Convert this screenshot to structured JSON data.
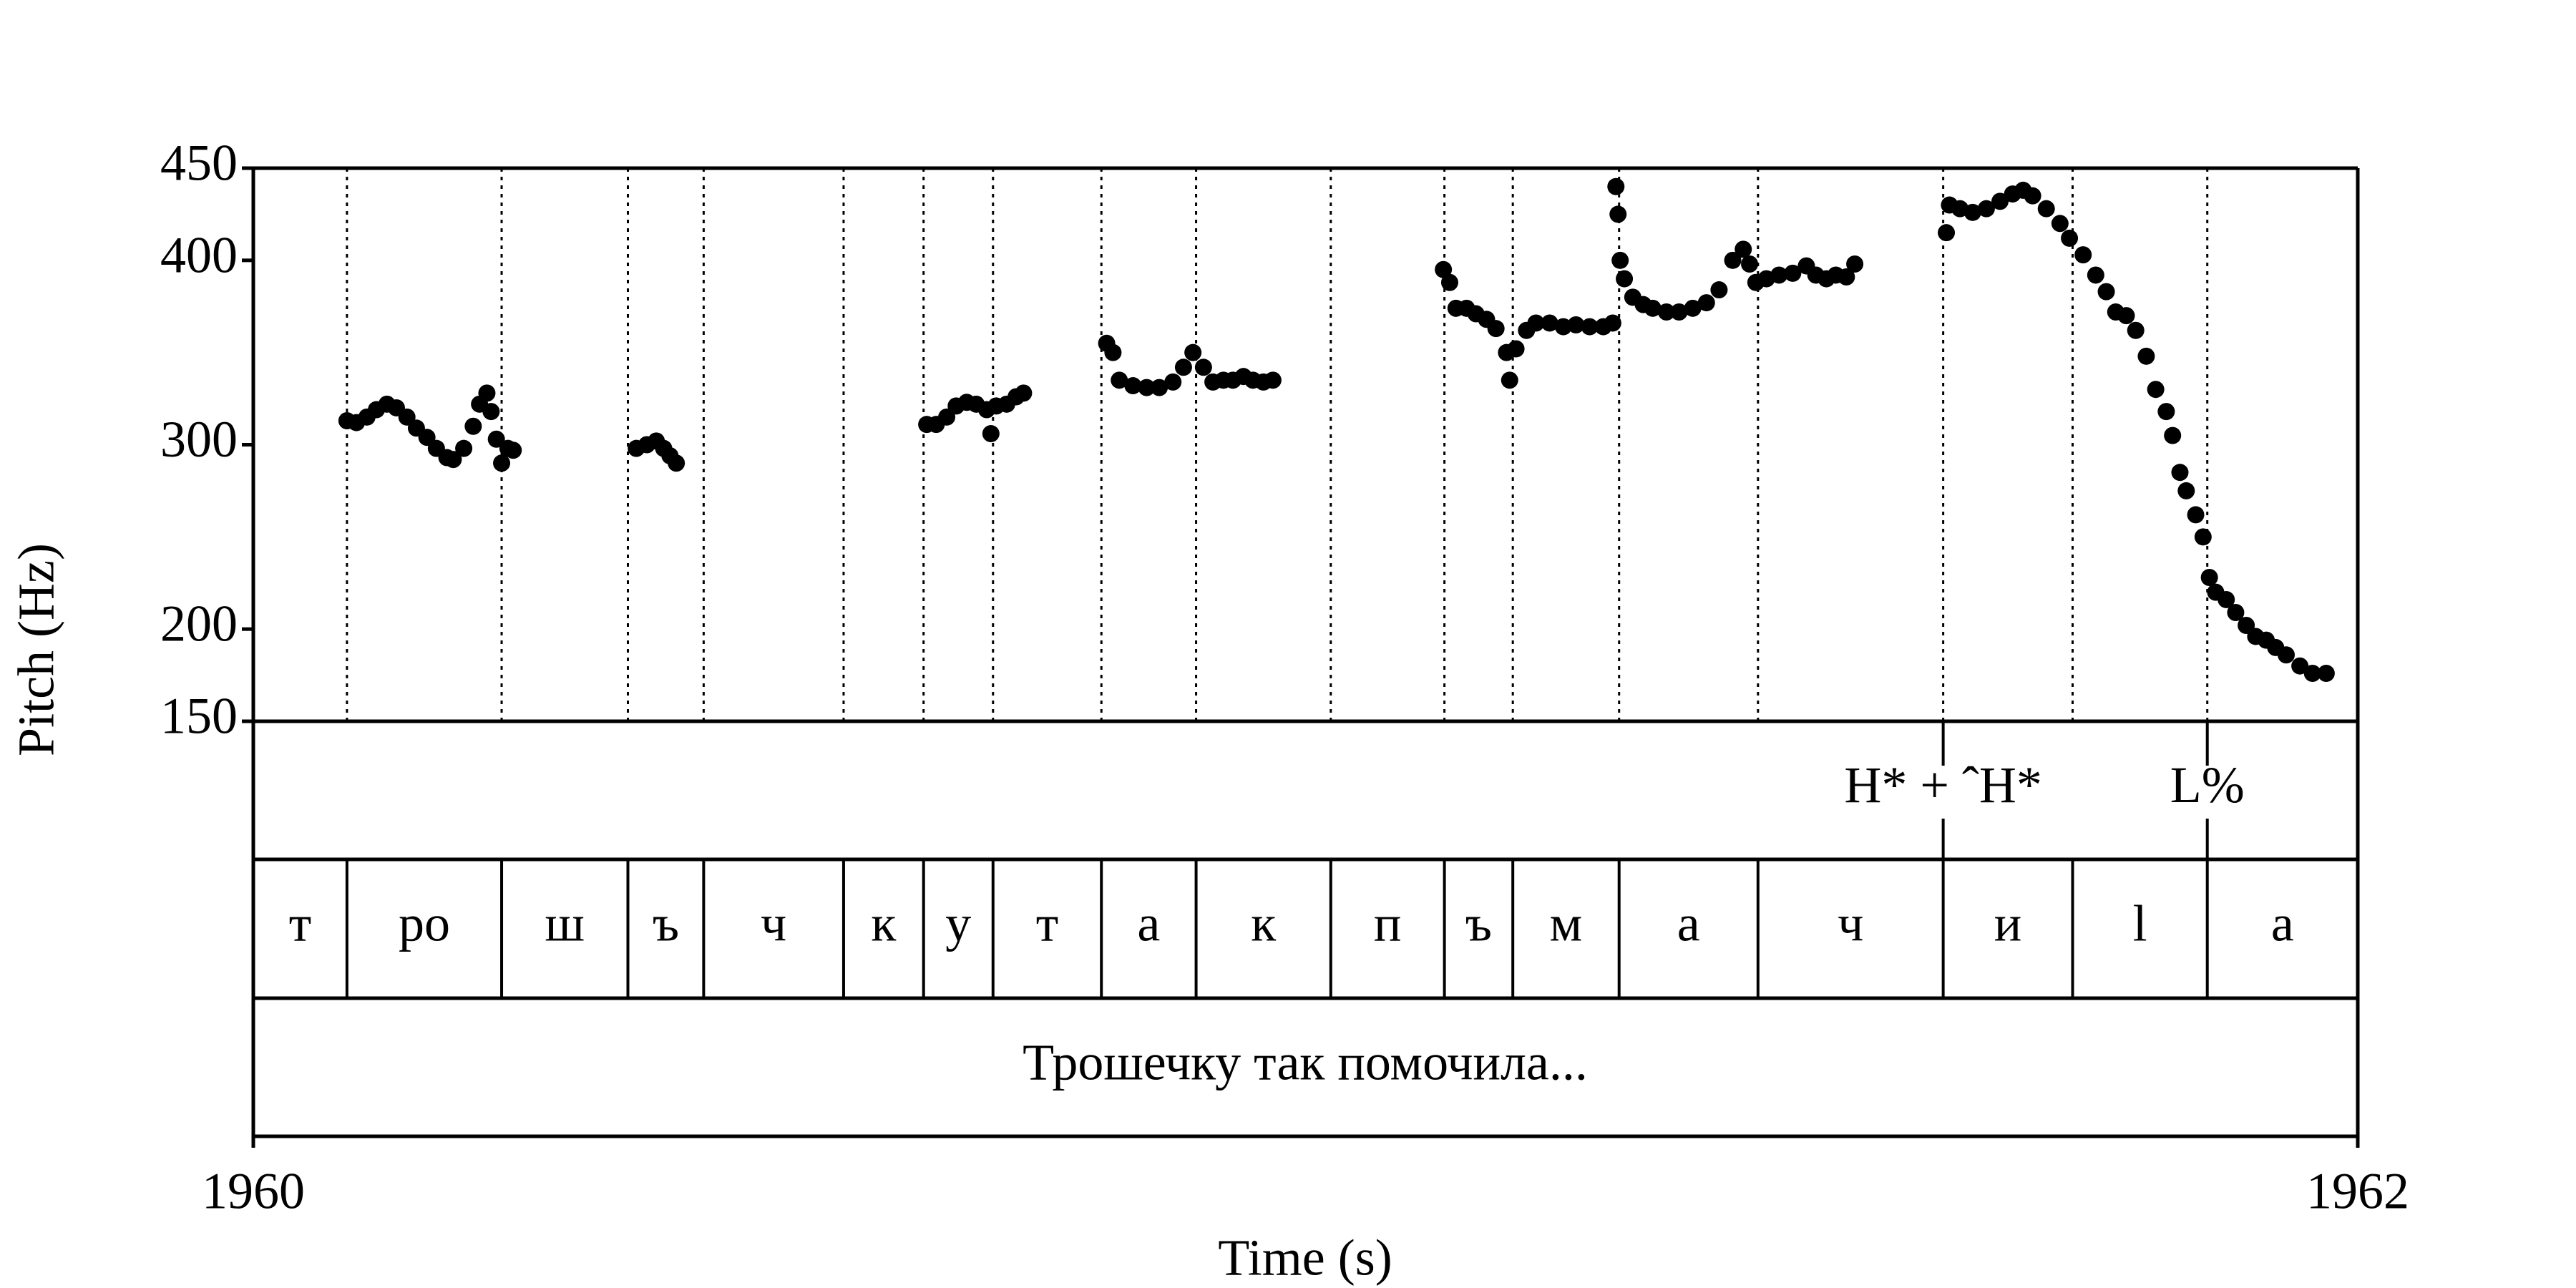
{
  "chart_data": {
    "type": "scatter",
    "x_label": "Time (s)",
    "y_label": "Pitch (Hz)",
    "xlim": [
      1960,
      1962
    ],
    "xticks": [
      1960,
      1962
    ],
    "ylim": [
      150,
      450
    ],
    "yticks": [
      150,
      200,
      300,
      400,
      450
    ],
    "color": "#000000",
    "x": [
      1960.089,
      1960.098,
      1960.108,
      1960.117,
      1960.127,
      1960.136,
      1960.146,
      1960.155,
      1960.165,
      1960.174,
      1960.184,
      1960.19,
      1960.2,
      1960.209,
      1960.215,
      1960.222,
      1960.226,
      1960.231,
      1960.236,
      1960.242,
      1960.247,
      1960.364,
      1960.374,
      1960.383,
      1960.39,
      1960.396,
      1960.402,
      1960.64,
      1960.649,
      1960.659,
      1960.668,
      1960.678,
      1960.687,
      1960.697,
      1960.701,
      1960.706,
      1960.716,
      1960.725,
      1960.732,
      1960.811,
      1960.817,
      1960.823,
      1960.836,
      1960.849,
      1960.861,
      1960.874,
      1960.884,
      1960.893,
      1960.903,
      1960.912,
      1960.922,
      1960.931,
      1960.941,
      1960.95,
      1960.96,
      1960.969,
      1961.131,
      1961.137,
      1961.143,
      1961.153,
      1961.162,
      1961.172,
      1961.181,
      1961.191,
      1961.194,
      1961.2,
      1961.21,
      1961.219,
      1961.232,
      1961.245,
      1961.257,
      1961.27,
      1961.283,
      1961.292,
      1961.295,
      1961.297,
      1961.299,
      1961.303,
      1961.311,
      1961.321,
      1961.33,
      1961.343,
      1961.355,
      1961.368,
      1961.381,
      1961.393,
      1961.406,
      1961.416,
      1961.422,
      1961.428,
      1961.438,
      1961.45,
      1961.463,
      1961.476,
      1961.485,
      1961.495,
      1961.504,
      1961.514,
      1961.522,
      1961.609,
      1961.612,
      1961.622,
      1961.634,
      1961.647,
      1961.66,
      1961.672,
      1961.682,
      1961.691,
      1961.704,
      1961.717,
      1961.726,
      1961.739,
      1961.751,
      1961.761,
      1961.77,
      1961.78,
      1961.789,
      1961.799,
      1961.808,
      1961.818,
      1961.824,
      1961.831,
      1961.837,
      1961.846,
      1961.853,
      1961.859,
      1961.865,
      1961.875,
      1961.884,
      1961.894,
      1961.903,
      1961.913,
      1961.922,
      1961.932,
      1961.945,
      1961.957,
      1961.97
    ],
    "values": [
      313,
      312,
      315,
      319,
      322,
      320,
      315,
      309,
      304,
      298,
      293,
      292,
      298,
      310,
      322,
      328,
      318,
      303,
      290,
      298,
      297,
      298,
      300,
      302,
      298,
      294,
      290,
      311,
      311,
      315,
      321,
      323,
      322,
      319,
      306,
      321,
      322,
      326,
      328,
      355,
      350,
      335,
      332,
      331,
      331,
      334,
      342,
      350,
      342,
      334,
      335,
      335,
      337,
      335,
      334,
      335,
      395,
      388,
      374,
      374,
      371,
      368,
      363,
      350,
      335,
      352,
      362,
      366,
      366,
      364,
      365,
      364,
      364,
      366,
      440,
      425,
      400,
      390,
      380,
      376,
      374,
      372,
      372,
      374,
      377,
      384,
      400,
      406,
      398,
      388,
      390,
      392,
      393,
      397,
      392,
      390,
      392,
      391,
      398,
      415,
      430,
      428,
      426,
      428,
      432,
      436,
      438,
      435,
      428,
      420,
      412,
      403,
      392,
      383,
      372,
      370,
      362,
      348,
      330,
      318,
      305,
      285,
      275,
      262,
      250,
      228,
      220,
      216,
      209,
      202,
      196,
      194,
      190,
      186,
      180,
      176,
      176
    ],
    "boundaries": [
      1960.089,
      1960.236,
      1960.356,
      1960.428,
      1960.561,
      1960.637,
      1960.703,
      1960.806,
      1960.896,
      1961.024,
      1961.132,
      1961.197,
      1961.298,
      1961.43,
      1961.606,
      1961.729,
      1961.857
    ],
    "segments": [
      "т",
      "ро",
      "ш",
      "ъ",
      "ч",
      "к",
      "у",
      "т",
      "а",
      "к",
      "п",
      "ъ",
      "м",
      "а",
      "ч",
      "и",
      "l",
      "а"
    ],
    "tones": [
      {
        "time": 1961.606,
        "label": "H* + ˆH*"
      },
      {
        "time": 1961.857,
        "label": "L%"
      }
    ],
    "sentence": "Трошечку так помочила..."
  }
}
